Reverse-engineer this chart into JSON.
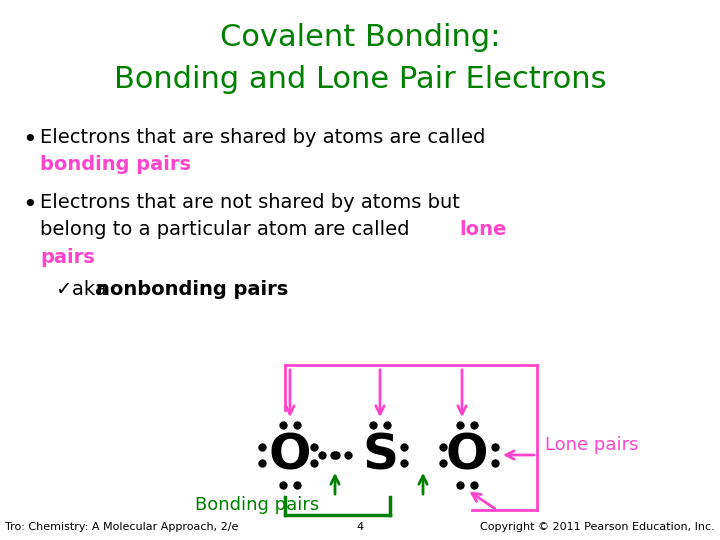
{
  "title_line1": "Covalent Bonding:",
  "title_line2": "Bonding and Lone Pair Electrons",
  "title_color": "#008000",
  "bullet1_black": "Electrons that are shared by atoms are called",
  "bullet1_pink": "bonding pairs",
  "bullet2_line1": "Electrons that are not shared by atoms but",
  "bullet2_line2_black": "belong to a particular atom are called ",
  "bullet2_line2_pink": "lone",
  "bullet2_line3_pink": "pairs",
  "checkmark": "✓",
  "aka_text": "aka ",
  "nonbonding": "nonbonding pairs",
  "pink_color": "#FF44CC",
  "green_color": "#008000",
  "black_color": "#000000",
  "bg_color": "#FFFFFF",
  "footer_left": "Tro: Chemistry: A Molecular Approach, 2/e",
  "footer_center": "4",
  "footer_right": "Copyright © 2011 Pearson Education, Inc.",
  "bonding_pairs_label": "Bonding pairs",
  "lone_pairs_label": "Lone pairs"
}
